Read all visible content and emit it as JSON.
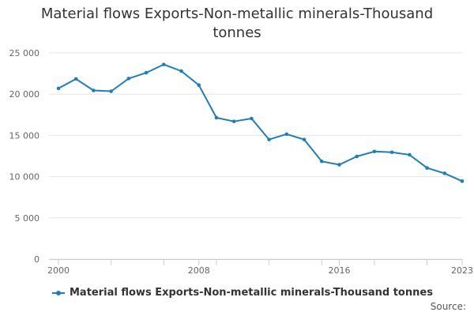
{
  "colors": {
    "series": "#1a7fbf",
    "grid": "#e6e6e6",
    "axis": "#cccccc",
    "text": "#333333",
    "tick_text": "#666666"
  },
  "source_label": "Source:",
  "chart_data": {
    "type": "line",
    "title": "Material flows Exports-Non-metallic minerals-Thousand tonnes",
    "xlabel": "",
    "ylabel": "",
    "x": [
      2000,
      2001,
      2002,
      2003,
      2004,
      2005,
      2006,
      2007,
      2008,
      2009,
      2010,
      2011,
      2012,
      2013,
      2014,
      2015,
      2016,
      2017,
      2018,
      2019,
      2020,
      2021,
      2022,
      2023
    ],
    "series": [
      {
        "name": "Material flows Exports-Non-metallic minerals-Thousand tonnes",
        "values": [
          20700,
          21850,
          20450,
          20350,
          21900,
          22600,
          23600,
          22800,
          21100,
          17150,
          16700,
          17050,
          14500,
          15150,
          14500,
          11850,
          11450,
          12450,
          13050,
          12950,
          12650,
          11050,
          10400,
          9450
        ]
      }
    ],
    "xlim": [
      2000,
      2023
    ],
    "ylim": [
      0,
      25000
    ],
    "y_ticks": [
      0,
      5000,
      10000,
      15000,
      20000,
      25000
    ],
    "y_tick_labels": [
      "0",
      "5 000",
      "10 000",
      "15 000",
      "20 000",
      "25 000"
    ],
    "x_tick_labels_shown": [
      "2000",
      "2008",
      "2016",
      "2023"
    ],
    "grid": true,
    "legend_position": "bottom-left"
  }
}
